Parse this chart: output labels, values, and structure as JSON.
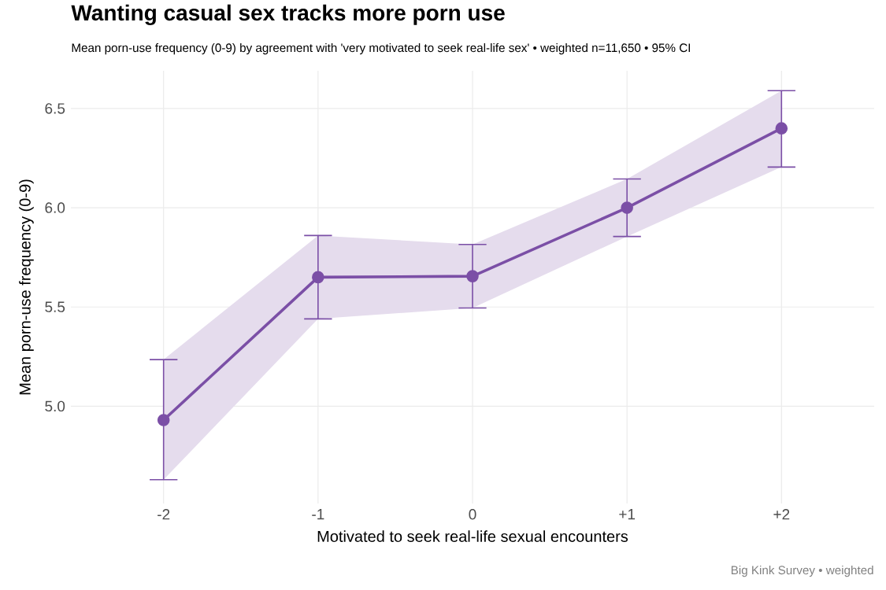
{
  "chart_data": {
    "type": "line",
    "title": "Wanting casual sex tracks more porn use",
    "subtitle": "Mean porn-use frequency (0-9) by agreement with 'very motivated to seek real-life sex'  •  weighted n=11,650  •  95% CI",
    "xlabel": "Motivated to seek real-life sexual encounters",
    "ylabel": "Mean porn-use frequency (0-9)",
    "categories": [
      "-2",
      "-1",
      "0",
      "+1",
      "+2"
    ],
    "series": [
      {
        "color": "#7b4fa6",
        "values": [
          4.93,
          5.65,
          5.655,
          6.0,
          6.4
        ],
        "errors": [
          [
            4.63,
            5.235
          ],
          [
            5.44,
            5.86
          ],
          [
            5.495,
            5.815
          ],
          [
            5.855,
            6.145
          ],
          [
            6.205,
            6.59
          ]
        ],
        "lower": [
          4.63,
          5.44,
          5.495,
          5.855,
          6.205
        ],
        "upper": [
          5.235,
          5.86,
          5.815,
          6.145,
          6.59
        ]
      }
    ],
    "ylim": [
      4.51,
      6.69
    ],
    "yticks": [
      {
        "value": 5,
        "label": "5.0"
      },
      {
        "value": 5.5,
        "label": "5.5"
      },
      {
        "value": 6,
        "label": "6.0"
      },
      {
        "value": 6.5,
        "label": "6.5"
      }
    ],
    "grid": true,
    "marker": "circle",
    "line_style": "solid",
    "annotations": [
      "Big Kink Survey  •  weighted"
    ]
  }
}
